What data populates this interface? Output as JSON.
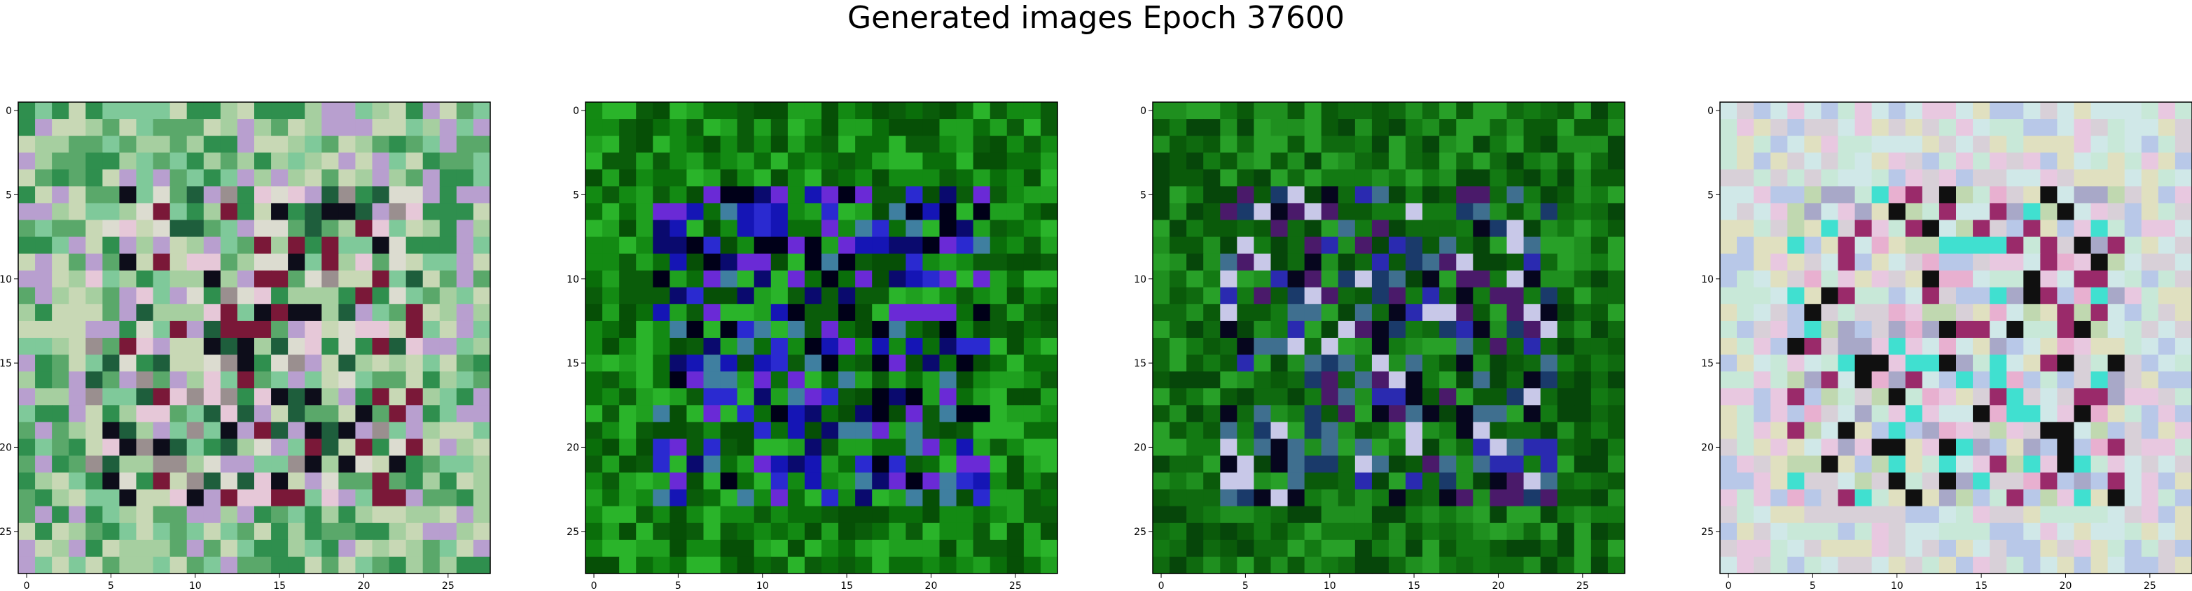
{
  "figure": {
    "title": "Generated images Epoch 37600"
  },
  "chart_data": [
    {
      "type": "heatmap",
      "rendering": "rgb-image",
      "grid": false,
      "xlim": [
        -0.5,
        27.5
      ],
      "ylim": [
        27.5,
        -0.5
      ],
      "xticks": [
        0,
        5,
        10,
        15,
        20,
        25
      ],
      "yticks": [
        0,
        5,
        10,
        15,
        20,
        25
      ],
      "palette": [
        "#a6cfa0",
        "#7fc99a",
        "#c8d8b5",
        "#5aa86a",
        "#2f8f4e",
        "#b89fcf",
        "#9a8f8f",
        "#dcdcd0",
        "#e6c8d8",
        "#1e5e3c",
        "#0d0d1a",
        "#7a1838"
      ]
    },
    {
      "type": "heatmap",
      "rendering": "rgb-image",
      "grid": false,
      "xlim": [
        -0.5,
        27.5
      ],
      "ylim": [
        27.5,
        -0.5
      ],
      "xticks": [
        0,
        5,
        10,
        15,
        20,
        25
      ],
      "yticks": [
        0,
        5,
        10,
        15,
        20,
        25
      ],
      "palette": [
        "#138a13",
        "#0a6e0a",
        "#1fa01f",
        "#0a5c0a",
        "#2ab42a",
        "#064f06",
        "#1515b5",
        "#2a2ad0",
        "#0a0a6e",
        "#000018",
        "#3f7fa0",
        "#6a2ad6"
      ]
    },
    {
      "type": "heatmap",
      "rendering": "rgb-image",
      "grid": false,
      "xlim": [
        -0.5,
        27.5
      ],
      "ylim": [
        27.5,
        -0.5
      ],
      "xticks": [
        0,
        5,
        10,
        15,
        20,
        25
      ],
      "yticks": [
        0,
        5,
        10,
        15,
        20,
        25
      ],
      "palette": [
        "#137a13",
        "#0a5a0a",
        "#1f8f1f",
        "#06460a",
        "#28a028",
        "#0f6a0f",
        "#2a2ab0",
        "#06061e",
        "#3f6f8f",
        "#4a1a6a",
        "#1a3a6a",
        "#c8c8e8"
      ]
    },
    {
      "type": "heatmap",
      "rendering": "rgb-image",
      "grid": false,
      "xlim": [
        -0.5,
        27.5
      ],
      "ylim": [
        27.5,
        -0.5
      ],
      "xticks": [
        0,
        5,
        10,
        15,
        20,
        25
      ],
      "yticks": [
        0,
        5,
        10,
        15,
        20,
        25
      ],
      "palette": [
        "#d8d0d8",
        "#e8c8e0",
        "#c8e8d8",
        "#b8c8e8",
        "#e0e0c0",
        "#d0e8e8",
        "#e8b0d0",
        "#c0d8b0",
        "#a8a8c8",
        "#40e0d0",
        "#9a2a6a",
        "#101010"
      ]
    }
  ]
}
